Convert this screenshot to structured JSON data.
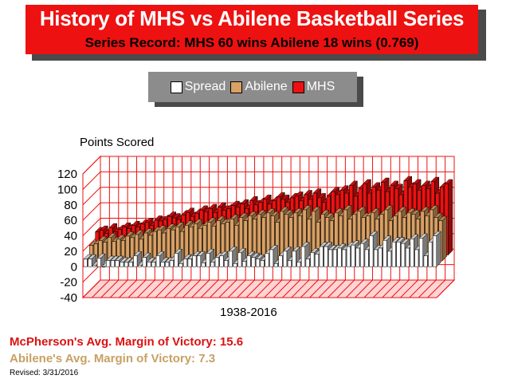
{
  "header": {
    "title": "History of MHS vs Abilene Basketball Series",
    "subtitle": "Series Record:  MHS 60 wins  Abilene 18 wins (0.769)"
  },
  "legend": {
    "items": [
      {
        "label": "Spread",
        "color": "#ffffff"
      },
      {
        "label": "Abilene",
        "color": "#d9a064"
      },
      {
        "label": "MHS",
        "color": "#ee1111"
      }
    ]
  },
  "footer": {
    "mhs_margin": "McPherson's Avg. Margin of Victory: 15.6",
    "abilene_margin": "Abilene's Avg. Margin of Victory: 7.3",
    "revised": "Revised: 3/31/2016"
  },
  "chart_data": {
    "type": "bar",
    "ylabel": "Points Scored",
    "xlabel": "1938-2016",
    "ylim": [
      -40,
      120
    ],
    "yticks": [
      "120",
      "100",
      "80",
      "60",
      "40",
      "20",
      "0",
      "-20",
      "-40"
    ],
    "grid": true,
    "colors": {
      "spread": "#ffffff",
      "abilene": "#d9a064",
      "mhs": "#ee1111",
      "floor": "#ffd4d4",
      "grid": "#ee1111"
    },
    "series": [
      {
        "name": "MHS",
        "values": [
          30,
          32,
          28,
          35,
          30,
          33,
          36,
          34,
          38,
          36,
          40,
          42,
          38,
          45,
          44,
          46,
          50,
          48,
          46,
          52,
          55,
          50,
          54,
          58,
          56,
          60,
          55,
          62,
          58,
          60,
          64,
          62,
          66,
          60,
          70,
          65,
          68,
          72,
          66,
          70,
          75,
          72,
          68,
          74,
          76,
          70,
          78,
          72,
          80,
          74,
          68,
          76,
          82,
          78,
          84,
          80,
          90,
          76,
          86,
          92,
          80,
          88,
          84,
          94,
          82,
          90,
          86,
          78,
          96,
          88,
          92,
          84,
          90,
          86,
          95,
          80,
          88,
          92
        ]
      },
      {
        "name": "Abilene",
        "values": [
          20,
          22,
          26,
          24,
          30,
          25,
          28,
          26,
          32,
          30,
          34,
          28,
          36,
          33,
          38,
          40,
          36,
          42,
          40,
          44,
          38,
          46,
          44,
          48,
          42,
          46,
          50,
          45,
          52,
          48,
          50,
          54,
          46,
          56,
          52,
          58,
          54,
          60,
          56,
          62,
          58,
          50,
          64,
          60,
          56,
          62,
          58,
          66,
          54,
          64,
          50,
          60,
          56,
          52,
          62,
          58,
          66,
          54,
          60,
          64,
          56,
          58,
          62,
          54,
          60,
          66,
          52,
          58,
          64,
          56,
          62,
          60,
          54,
          64,
          58,
          66,
          56,
          52
        ]
      },
      {
        "name": "Spread",
        "values": [
          10,
          10,
          2,
          11,
          0,
          8,
          8,
          8,
          6,
          6,
          6,
          14,
          2,
          12,
          6,
          6,
          14,
          6,
          6,
          8,
          17,
          4,
          10,
          10,
          14,
          14,
          5,
          17,
          6,
          12,
          14,
          8,
          20,
          4,
          18,
          7,
          14,
          12,
          10,
          8,
          17,
          22,
          4,
          14,
          20,
          8,
          20,
          6,
          26,
          10,
          18,
          16,
          26,
          26,
          22,
          22,
          24,
          22,
          26,
          28,
          24,
          30,
          22,
          40,
          22,
          24,
          34,
          20,
          32,
          32,
          30,
          24,
          36,
          22,
          37,
          14,
          32,
          40
        ]
      }
    ]
  }
}
